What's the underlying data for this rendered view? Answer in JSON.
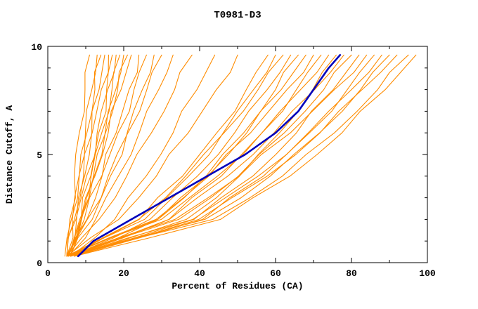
{
  "title": "T0981-D3",
  "colors": {
    "model": "#ff8c00",
    "reference": "#0000bb",
    "frame": "#000000",
    "background": "#ffffff"
  },
  "chart_data": {
    "type": "line",
    "title": "T0981-D3",
    "xlabel": "Percent of Residues (CA)",
    "ylabel": "Distance Cutoff, A",
    "xlim": [
      0,
      100
    ],
    "ylim": [
      0,
      10
    ],
    "x_major_ticks": [
      0,
      20,
      40,
      60,
      80,
      100
    ],
    "x_minor_ticks": [
      10,
      30,
      50,
      70,
      90
    ],
    "y_major_ticks": [
      0,
      5,
      10
    ],
    "y_minor_ticks": [
      1,
      2,
      3,
      4,
      6,
      7,
      8,
      9
    ],
    "grid": false,
    "legend": null,
    "reference_series": {
      "points": [
        [
          8,
          0.3
        ],
        [
          12,
          1
        ],
        [
          22,
          2
        ],
        [
          32,
          3
        ],
        [
          42,
          4
        ],
        [
          52,
          5
        ],
        [
          60,
          6
        ],
        [
          66,
          7
        ],
        [
          70,
          8
        ],
        [
          74,
          9
        ],
        [
          77,
          9.6
        ]
      ]
    },
    "series": [
      {
        "points": [
          [
            5,
            0.3
          ],
          [
            5.8,
            2
          ],
          [
            7,
            4
          ],
          [
            8.3,
            6
          ],
          [
            9.8,
            8
          ],
          [
            11,
            9.6
          ]
        ]
      },
      {
        "points": [
          [
            5,
            0.3
          ],
          [
            6.5,
            2
          ],
          [
            8.2,
            4
          ],
          [
            9.9,
            6
          ],
          [
            11.6,
            8
          ],
          [
            13,
            9.6
          ]
        ]
      },
      {
        "points": [
          [
            4.5,
            0.3
          ],
          [
            6.2,
            2
          ],
          [
            8.3,
            4
          ],
          [
            10.3,
            6
          ],
          [
            12.4,
            8
          ],
          [
            14,
            9.6
          ]
        ]
      },
      {
        "points": [
          [
            5.5,
            0.3
          ],
          [
            7.6,
            2
          ],
          [
            9.7,
            4
          ],
          [
            11.6,
            6
          ],
          [
            13.5,
            8
          ],
          [
            15,
            9.6
          ]
        ]
      },
      {
        "points": [
          [
            5,
            0.3
          ],
          [
            7,
            2
          ],
          [
            9.4,
            4
          ],
          [
            11.7,
            6
          ],
          [
            14.1,
            8
          ],
          [
            16,
            9.6
          ]
        ]
      },
      {
        "points": [
          [
            6,
            0.3
          ],
          [
            8.8,
            2
          ],
          [
            11.3,
            4
          ],
          [
            13.4,
            6
          ],
          [
            15.5,
            8
          ],
          [
            17,
            9.6
          ]
        ]
      },
      {
        "points": [
          [
            5,
            0.3
          ],
          [
            7.4,
            2
          ],
          [
            10.2,
            4
          ],
          [
            13,
            6
          ],
          [
            15.8,
            8
          ],
          [
            18,
            9.6
          ]
        ]
      },
      {
        "points": [
          [
            5.5,
            0.3
          ],
          [
            8.4,
            2
          ],
          [
            11.4,
            4
          ],
          [
            14.2,
            6
          ],
          [
            16.9,
            8
          ],
          [
            19,
            9.6
          ]
        ]
      },
      {
        "points": [
          [
            5,
            0.3
          ],
          [
            8.9,
            2
          ],
          [
            12.2,
            4
          ],
          [
            15.1,
            6
          ],
          [
            17.9,
            8
          ],
          [
            20,
            9.6
          ]
        ]
      },
      {
        "points": [
          [
            6,
            0.3
          ],
          [
            8.7,
            2
          ],
          [
            12,
            4
          ],
          [
            15.2,
            6
          ],
          [
            18.4,
            8
          ],
          [
            21,
            9.6
          ]
        ]
      },
      {
        "points": [
          [
            5,
            0.3
          ],
          [
            8.7,
            2
          ],
          [
            12.4,
            4
          ],
          [
            15.9,
            6
          ],
          [
            19.3,
            8
          ],
          [
            22,
            9.6
          ]
        ]
      },
      {
        "points": [
          [
            5.5,
            0.3
          ],
          [
            10.3,
            2
          ],
          [
            14.3,
            4
          ],
          [
            18,
            6
          ],
          [
            21.4,
            8
          ],
          [
            24,
            9.6
          ]
        ]
      },
      {
        "points": [
          [
            5,
            0.3
          ],
          [
            9.6,
            2
          ],
          [
            14.2,
            4
          ],
          [
            18.5,
            6
          ],
          [
            22.7,
            8
          ],
          [
            26,
            9.6
          ]
        ]
      },
      {
        "points": [
          [
            6,
            0.3
          ],
          [
            11.7,
            2
          ],
          [
            16.5,
            4
          ],
          [
            20.9,
            6
          ],
          [
            24.9,
            8
          ],
          [
            28,
            9.6
          ]
        ]
      },
      {
        "points": [
          [
            5,
            0.3
          ],
          [
            10.4,
            2
          ],
          [
            15.9,
            4
          ],
          [
            21.1,
            6
          ],
          [
            26.1,
            8
          ],
          [
            30,
            9.6
          ]
        ]
      },
      {
        "points": [
          [
            5.5,
            0.3
          ],
          [
            12.6,
            2
          ],
          [
            18.6,
            4
          ],
          [
            24.1,
            6
          ],
          [
            29.2,
            8
          ],
          [
            33,
            9.6
          ]
        ]
      },
      {
        "points": [
          [
            5,
            0.3
          ],
          [
            13.5,
            2
          ],
          [
            20.8,
            4
          ],
          [
            27.3,
            6
          ],
          [
            33.4,
            8
          ],
          [
            38,
            9.6
          ]
        ]
      },
      {
        "points": [
          [
            6,
            0.3
          ],
          [
            17.6,
            2
          ],
          [
            25.9,
            4
          ],
          [
            33,
            6
          ],
          [
            39.3,
            8
          ],
          [
            44,
            9.6
          ]
        ]
      },
      {
        "points": [
          [
            5,
            0.3
          ],
          [
            18.7,
            2
          ],
          [
            28.6,
            4
          ],
          [
            37,
            6
          ],
          [
            44.4,
            8
          ],
          [
            50,
            9.6
          ]
        ]
      },
      {
        "points": [
          [
            5,
            0.3
          ],
          [
            24.1,
            2
          ],
          [
            35.5,
            4
          ],
          [
            44.5,
            6
          ],
          [
            52.3,
            8
          ],
          [
            58,
            9.6
          ]
        ]
      },
      {
        "points": [
          [
            6,
            0.3
          ],
          [
            25.5,
            2
          ],
          [
            37.1,
            4
          ],
          [
            46.2,
            6
          ],
          [
            54.2,
            8
          ],
          [
            60,
            9.6
          ]
        ]
      },
      {
        "points": [
          [
            5,
            0.3
          ],
          [
            23.9,
            2
          ],
          [
            36.3,
            4
          ],
          [
            46.4,
            6
          ],
          [
            55.4,
            8
          ],
          [
            62,
            9.6
          ]
        ]
      },
      {
        "points": [
          [
            6,
            0.3
          ],
          [
            26.9,
            2
          ],
          [
            39.4,
            4
          ],
          [
            49.2,
            6
          ],
          [
            57.8,
            8
          ],
          [
            64,
            9.6
          ]
        ]
      },
      {
        "points": [
          [
            5,
            0.3
          ],
          [
            29,
            2
          ],
          [
            41.7,
            4
          ],
          [
            51.6,
            6
          ],
          [
            60,
            8
          ],
          [
            66,
            9.6
          ]
        ]
      },
      {
        "points": [
          [
            7,
            0.3
          ],
          [
            29,
            2
          ],
          [
            42.1,
            4
          ],
          [
            52.4,
            6
          ],
          [
            61.5,
            8
          ],
          [
            68,
            9.6
          ]
        ]
      },
      {
        "points": [
          [
            5,
            0.3
          ],
          [
            28.5,
            2
          ],
          [
            42.4,
            4
          ],
          [
            53.4,
            6
          ],
          [
            63,
            8
          ],
          [
            70,
            9.6
          ]
        ]
      },
      {
        "points": [
          [
            6,
            0.3
          ],
          [
            31.9,
            2
          ],
          [
            45.7,
            4
          ],
          [
            56.4,
            6
          ],
          [
            65.5,
            8
          ],
          [
            72,
            9.6
          ]
        ]
      },
      {
        "points": [
          [
            5,
            0.3
          ],
          [
            29.9,
            2
          ],
          [
            44.7,
            4
          ],
          [
            56.4,
            6
          ],
          [
            66.6,
            8
          ],
          [
            74,
            9.6
          ]
        ]
      },
      {
        "points": [
          [
            7,
            0.3
          ],
          [
            36.5,
            2
          ],
          [
            50.5,
            4
          ],
          [
            61,
            6
          ],
          [
            69.8,
            8
          ],
          [
            76,
            9.6
          ]
        ]
      },
      {
        "points": [
          [
            6,
            0.3
          ],
          [
            32,
            2
          ],
          [
            47.4,
            4
          ],
          [
            59.6,
            6
          ],
          [
            70.3,
            8
          ],
          [
            78,
            9.6
          ]
        ]
      },
      {
        "points": [
          [
            5,
            0.3
          ],
          [
            34.5,
            2
          ],
          [
            50.2,
            4
          ],
          [
            62.3,
            6
          ],
          [
            72.7,
            8
          ],
          [
            80,
            9.6
          ]
        ]
      },
      {
        "points": [
          [
            6,
            0.3
          ],
          [
            38.5,
            2
          ],
          [
            54,
            4
          ],
          [
            65.5,
            6
          ],
          [
            75.2,
            8
          ],
          [
            82,
            9.6
          ]
        ]
      },
      {
        "points": [
          [
            5,
            0.3
          ],
          [
            33.5,
            2
          ],
          [
            50.4,
            4
          ],
          [
            63.9,
            6
          ],
          [
            75.5,
            8
          ],
          [
            84,
            9.6
          ]
        ]
      },
      {
        "points": [
          [
            7,
            0.3
          ],
          [
            40.8,
            2
          ],
          [
            56.8,
            4
          ],
          [
            68.9,
            6
          ],
          [
            78.9,
            8
          ],
          [
            86,
            9.6
          ]
        ]
      },
      {
        "points": [
          [
            6,
            0.3
          ],
          [
            38.2,
            2
          ],
          [
            55.4,
            4
          ],
          [
            68.6,
            6
          ],
          [
            80,
            8
          ],
          [
            88,
            9.6
          ]
        ]
      },
      {
        "points": [
          [
            5,
            0.3
          ],
          [
            41.4,
            2
          ],
          [
            58.6,
            4
          ],
          [
            71.6,
            6
          ],
          [
            82.4,
            8
          ],
          [
            90,
            9.6
          ]
        ]
      },
      {
        "points": [
          [
            6,
            0.3
          ],
          [
            39.8,
            2
          ],
          [
            57.8,
            4
          ],
          [
            71.7,
            6
          ],
          [
            82.8,
            8
          ],
          [
            92,
            9.6
          ]
        ]
      },
      {
        "points": [
          [
            5,
            0.3
          ],
          [
            43.5,
            2
          ],
          [
            61.8,
            4
          ],
          [
            75.5,
            6
          ],
          [
            86.9,
            8
          ],
          [
            95,
            9.6
          ]
        ]
      },
      {
        "points": [
          [
            7,
            0.3
          ],
          [
            45.5,
            2
          ],
          [
            63.8,
            4
          ],
          [
            77.5,
            6
          ],
          [
            88.9,
            8
          ],
          [
            97,
            9.6
          ]
        ]
      }
    ]
  }
}
